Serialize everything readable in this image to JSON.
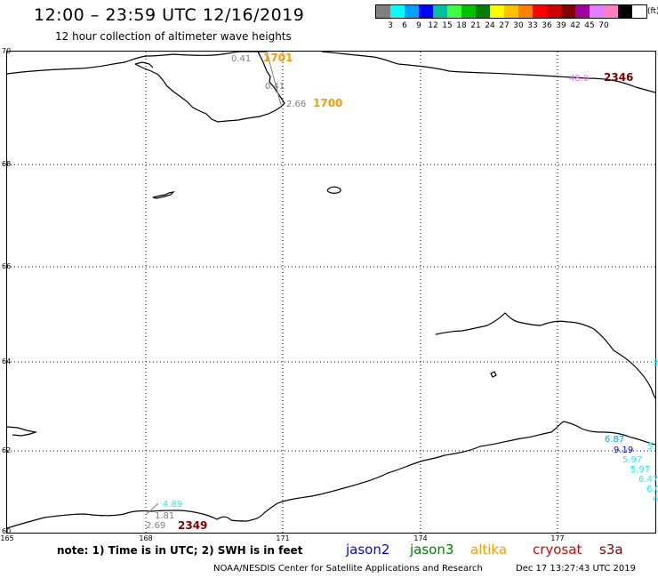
{
  "header": {
    "title": "12:00 – 23:59 UTC 12/16/2019",
    "subtitle": "12 hour collection of altimeter wave heights"
  },
  "scale": {
    "colors": [
      "#808080",
      "#00ffff",
      "#00a0ff",
      "#0000ff",
      "#00c0a0",
      "#40ff40",
      "#00c000",
      "#008000",
      "#ffff00",
      "#ffc000",
      "#ff8000",
      "#ff0000",
      "#d00000",
      "#800000",
      "#a000a0",
      "#e080ff",
      "#ff80c0",
      "#000000"
    ],
    "labels": [
      "3",
      "6",
      "9",
      "12",
      "15",
      "18",
      "21",
      "24",
      "27",
      "30",
      "33",
      "36",
      "39",
      "42",
      "45",
      "70"
    ],
    "unit": "(ft)"
  },
  "axes": {
    "lat_labels": [
      "70",
      "68",
      "66",
      "64",
      "62",
      "60"
    ],
    "lon_labels": [
      "165",
      "168",
      "171",
      "174",
      "177"
    ]
  },
  "observations": [
    {
      "text": "0.41",
      "color": "#808080"
    },
    {
      "text": "0.41",
      "color": "#808080"
    },
    {
      "text": "2.66",
      "color": "#808080"
    },
    {
      "text": "48.0",
      "color": "#e080ff"
    },
    {
      "text": "4.89",
      "color": "#00ffff"
    },
    {
      "text": "1.81",
      "color": "#808080"
    },
    {
      "text": "2.69",
      "color": "#808080"
    },
    {
      "text": "6.87",
      "color": "#00a0ff"
    },
    {
      "text": "9.19",
      "color": "#0000ff"
    },
    {
      "text": "5.97",
      "color": "#00ffff"
    },
    {
      "text": "5.97",
      "color": "#00ffff"
    },
    {
      "text": "6.47",
      "color": "#00ffff"
    },
    {
      "text": "6.0",
      "color": "#00ffff"
    },
    {
      "text": "6",
      "color": "#00ffff"
    },
    {
      "text": "5.",
      "color": "#00ffff"
    },
    {
      "text": "3",
      "color": "#00ffff"
    }
  ],
  "time_labels": [
    {
      "text": "1701",
      "color": "#ff9900"
    },
    {
      "text": "1700",
      "color": "#ff9900"
    },
    {
      "text": "2346",
      "color": "#800000"
    },
    {
      "text": "2349",
      "color": "#800000"
    }
  ],
  "footer": {
    "note": "note: 1) Time is in UTC; 2) SWH is in feet",
    "satellites": [
      {
        "name": "jason2",
        "color": "#0000ff"
      },
      {
        "name": "jason3",
        "color": "#008000"
      },
      {
        "name": "altika",
        "color": "#ff9900"
      },
      {
        "name": "cryosat",
        "color": "#e00000"
      },
      {
        "name": "s3a",
        "color": "#800000"
      }
    ],
    "credit": "NOAA/NESDIS Center for Satellite Applications and Research",
    "timestamp": "Dec 17 13:27:43 UTC 2019"
  }
}
